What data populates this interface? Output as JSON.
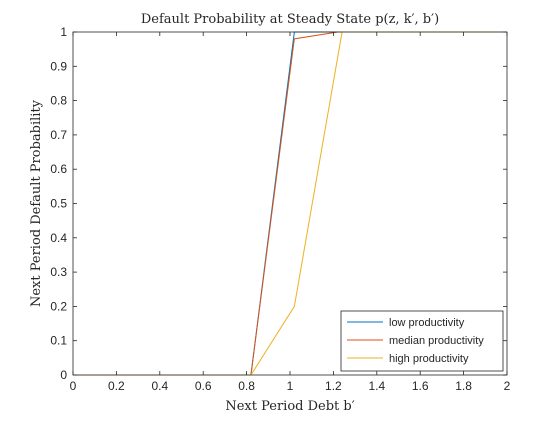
{
  "chart_data": {
    "type": "line",
    "title": "Default Probability at Steady State p(z, k′, b′)",
    "xlabel": "Next Period Debt b′",
    "ylabel": "Next Period Default Probability",
    "xlim": [
      0,
      2
    ],
    "ylim": [
      0,
      1
    ],
    "xticks": [
      0,
      0.2,
      0.4,
      0.6,
      0.8,
      1,
      1.2,
      1.4,
      1.6,
      1.8,
      2
    ],
    "yticks": [
      0,
      0.1,
      0.2,
      0.3,
      0.4,
      0.5,
      0.6,
      0.7,
      0.8,
      0.9,
      1
    ],
    "xtick_labels": [
      "0",
      "0.2",
      "0.4",
      "0.6",
      "0.8",
      "1",
      "1.2",
      "1.4",
      "1.6",
      "1.8",
      "2"
    ],
    "ytick_labels": [
      "0",
      "0.1",
      "0.2",
      "0.3",
      "0.4",
      "0.5",
      "0.6",
      "0.7",
      "0.8",
      "0.9",
      "1"
    ],
    "grid": false,
    "legend_position": "bottom-right",
    "series": [
      {
        "name": "low productivity",
        "color": "#0072BD",
        "x": [
          0,
          0.82,
          1.02,
          1.22,
          2
        ],
        "y": [
          0,
          0,
          1,
          1,
          1
        ]
      },
      {
        "name": "median productivity",
        "color": "#D95319",
        "x": [
          0,
          0.82,
          1.02,
          1.22,
          2
        ],
        "y": [
          0,
          0,
          0.98,
          1,
          1
        ]
      },
      {
        "name": "high productivity",
        "color": "#EDB120",
        "x": [
          0,
          0.82,
          1.02,
          1.24,
          2
        ],
        "y": [
          0,
          0,
          0.2,
          1,
          1
        ]
      }
    ]
  }
}
